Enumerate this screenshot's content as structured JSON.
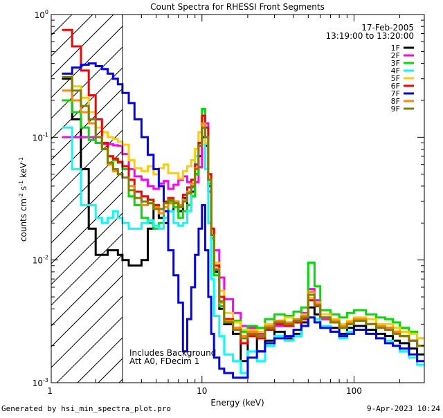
{
  "chart_data": {
    "type": "line",
    "title": "Count Spectra for RHESSI Front Segments",
    "xlabel": "Energy (keV)",
    "ylabel": "counts cm",
    "ylabel_sup1": "-2",
    "ylabel_mid": " s",
    "ylabel_sup2": "-1",
    "ylabel_unit": " keV",
    "ylabel_sup3": "-1",
    "x_scale": "log",
    "y_scale": "log",
    "xlim": [
      1.02,
      290
    ],
    "ylim": [
      0.001,
      1.0
    ],
    "x_ticks": [
      {
        "value": 1,
        "label": "1"
      },
      {
        "value": 10,
        "label": "10"
      },
      {
        "value": 100,
        "label": "100"
      }
    ],
    "y_ticks": [
      {
        "value": 0.001,
        "mant": "10",
        "exp": "-3"
      },
      {
        "value": 0.01,
        "mant": "10",
        "exp": "-2"
      },
      {
        "value": 0.1,
        "mant": "10",
        "exp": "-1"
      },
      {
        "value": 1.0,
        "mant": "10",
        "exp": "0"
      }
    ],
    "hatched_region": [
      1.02,
      3.0
    ],
    "legend_placement": "top-right",
    "date_label": "17-Feb-2005",
    "time_range_label": "13:19:00 to 13:20:00",
    "annotations": [
      "Includes Background",
      "Att A0, FDecim 1"
    ],
    "bin_edges": [
      1.2,
      1.4,
      1.6,
      1.8,
      2.0,
      2.2,
      2.4,
      2.6,
      2.8,
      3.0,
      3.3,
      3.6,
      4.0,
      4.4,
      4.8,
      5.2,
      5.6,
      6.0,
      6.5,
      7.0,
      7.5,
      8.0,
      8.5,
      9.0,
      9.5,
      10.0,
      10.5,
      11.0,
      11.5,
      12.0,
      13.0,
      14.0,
      16.0,
      18.0,
      20.0,
      23.0,
      26.0,
      30.0,
      35.0,
      40.0,
      45.0,
      50.0,
      55.0,
      60.0,
      70.0,
      80.0,
      90.0,
      100.0,
      120.0,
      140.0,
      160.0,
      180.0,
      200.0,
      230.0,
      260.0,
      290.0
    ],
    "series": [
      {
        "name": "1F",
        "color": "#000000",
        "values": [
          0.3,
          0.14,
          0.055,
          0.018,
          0.011,
          0.011,
          0.012,
          0.012,
          0.011,
          0.01,
          0.009,
          0.009,
          0.01,
          0.018,
          0.028,
          0.022,
          0.02,
          0.025,
          0.03,
          0.025,
          0.032,
          0.028,
          0.036,
          0.05,
          0.07,
          0.1,
          0.085,
          0.04,
          0.015,
          0.008,
          0.004,
          0.003,
          0.0025,
          0.0015,
          0.0025,
          0.0018,
          0.0022,
          0.0026,
          0.0023,
          0.0025,
          0.0031,
          0.0041,
          0.0036,
          0.0029,
          0.0028,
          0.0025,
          0.0028,
          0.0029,
          0.0027,
          0.0025,
          0.0024,
          0.0022,
          0.0021,
          0.0019,
          0.0017
        ]
      },
      {
        "name": "2F",
        "color": "#ff00ff",
        "values": [
          0.1,
          0.1,
          0.1,
          0.1,
          0.09,
          0.088,
          0.088,
          0.086,
          0.085,
          0.073,
          0.055,
          0.048,
          0.045,
          0.04,
          0.038,
          0.042,
          0.044,
          0.038,
          0.041,
          0.045,
          0.048,
          0.043,
          0.039,
          0.043,
          0.057,
          0.12,
          0.13,
          0.036,
          0.018,
          0.012,
          0.0072,
          0.0048,
          0.0037,
          0.0029,
          0.0028,
          0.0025,
          0.0028,
          0.0029,
          0.003,
          0.0031,
          0.0037,
          0.0058,
          0.0047,
          0.0033,
          0.0031,
          0.0028,
          0.003,
          0.0032,
          0.003,
          0.0029,
          0.0028,
          0.0026,
          0.0024,
          0.0022,
          0.002
        ]
      },
      {
        "name": "3F",
        "color": "#00dd00",
        "values": [
          0.2,
          0.16,
          0.12,
          0.095,
          0.09,
          0.08,
          0.07,
          0.065,
          0.062,
          0.055,
          0.033,
          0.028,
          0.022,
          0.02,
          0.018,
          0.02,
          0.025,
          0.03,
          0.027,
          0.022,
          0.025,
          0.028,
          0.033,
          0.05,
          0.09,
          0.17,
          0.12,
          0.042,
          0.015,
          0.0075,
          0.0042,
          0.0033,
          0.0032,
          0.0026,
          0.0029,
          0.0028,
          0.0033,
          0.0036,
          0.0035,
          0.0038,
          0.0041,
          0.0095,
          0.0061,
          0.0039,
          0.0036,
          0.0034,
          0.0037,
          0.0039,
          0.0036,
          0.0034,
          0.0033,
          0.0031,
          0.0028,
          0.0026,
          0.0023
        ]
      },
      {
        "name": "4F",
        "color": "#00ffff",
        "values": [
          0.12,
          0.055,
          0.028,
          0.028,
          0.022,
          0.02,
          0.022,
          0.025,
          0.022,
          0.02,
          0.018,
          0.018,
          0.02,
          0.021,
          0.019,
          0.018,
          0.022,
          0.025,
          0.02,
          0.019,
          0.02,
          0.025,
          0.04,
          0.07,
          0.11,
          0.12,
          0.055,
          0.02,
          0.007,
          0.0035,
          0.0024,
          0.0017,
          0.0015,
          0.0012,
          0.0018,
          0.0015,
          0.002,
          0.0024,
          0.0022,
          0.0024,
          0.0029,
          0.0034,
          0.0033,
          0.0029,
          0.0026,
          0.0023,
          0.0026,
          0.0027,
          0.0025,
          0.0023,
          0.0022,
          0.002,
          0.0018,
          0.0016,
          0.0014
        ]
      },
      {
        "name": "5F",
        "color": "#ffcc00",
        "values": [
          0.33,
          0.26,
          0.21,
          0.16,
          0.12,
          0.11,
          0.1,
          0.097,
          0.092,
          0.087,
          0.065,
          0.056,
          0.053,
          0.058,
          0.05,
          0.056,
          0.06,
          0.051,
          0.051,
          0.046,
          0.053,
          0.058,
          0.065,
          0.08,
          0.11,
          0.14,
          0.09,
          0.05,
          0.018,
          0.0095,
          0.0056,
          0.0037,
          0.0031,
          0.0027,
          0.0027,
          0.0026,
          0.003,
          0.0032,
          0.0034,
          0.0033,
          0.0036,
          0.0049,
          0.0045,
          0.0036,
          0.0033,
          0.003,
          0.0032,
          0.0034,
          0.0033,
          0.003,
          0.003,
          0.0028,
          0.0026,
          0.0025,
          0.0023
        ]
      },
      {
        "name": "6F",
        "color": "#ff0000",
        "values": [
          0.75,
          0.55,
          0.35,
          0.22,
          0.14,
          0.09,
          0.07,
          0.067,
          0.063,
          0.058,
          0.045,
          0.036,
          0.033,
          0.031,
          0.028,
          0.026,
          0.03,
          0.032,
          0.03,
          0.028,
          0.034,
          0.039,
          0.045,
          0.06,
          0.09,
          0.15,
          0.12,
          0.05,
          0.018,
          0.009,
          0.005,
          0.0033,
          0.0028,
          0.0021,
          0.0024,
          0.0023,
          0.0027,
          0.003,
          0.0029,
          0.0031,
          0.0033,
          0.0047,
          0.0042,
          0.0034,
          0.0032,
          0.0028,
          0.003,
          0.0032,
          0.003,
          0.0029,
          0.0028,
          0.0026,
          0.0024,
          0.0022,
          0.002
        ]
      },
      {
        "name": "7F",
        "color": "#0000ff",
        "values": [
          0.33,
          0.37,
          0.39,
          0.4,
          0.38,
          0.36,
          0.33,
          0.3,
          0.27,
          0.23,
          0.19,
          0.14,
          0.1,
          0.072,
          0.055,
          0.04,
          0.025,
          0.012,
          0.0075,
          0.0045,
          0.0018,
          0.0033,
          0.006,
          0.011,
          0.018,
          0.028,
          0.012,
          0.005,
          0.0025,
          0.0016,
          0.0013,
          0.0012,
          0.0011,
          0.0011,
          0.0016,
          0.0018,
          0.0021,
          0.0023,
          0.0024,
          0.0027,
          0.0029,
          0.0034,
          0.0031,
          0.0028,
          0.0026,
          0.0024,
          0.0025,
          0.0027,
          0.0025,
          0.0023,
          0.0021,
          0.002,
          0.0019,
          0.0017,
          0.0015
        ]
      },
      {
        "name": "8F",
        "color": "#ff8800",
        "values": [
          0.24,
          0.2,
          0.16,
          0.13,
          0.1,
          0.08,
          0.06,
          0.053,
          0.05,
          0.047,
          0.04,
          0.032,
          0.028,
          0.029,
          0.027,
          0.024,
          0.027,
          0.029,
          0.03,
          0.028,
          0.031,
          0.036,
          0.042,
          0.056,
          0.085,
          0.13,
          0.1,
          0.045,
          0.016,
          0.0085,
          0.0045,
          0.0032,
          0.0028,
          0.0024,
          0.0026,
          0.0024,
          0.0029,
          0.0032,
          0.0031,
          0.0033,
          0.0035,
          0.0055,
          0.0044,
          0.0034,
          0.0032,
          0.0029,
          0.0031,
          0.0033,
          0.003,
          0.0029,
          0.0028,
          0.0026,
          0.0024,
          0.0022,
          0.002
        ]
      },
      {
        "name": "9F",
        "color": "#808000",
        "values": [
          0.31,
          0.24,
          0.18,
          0.14,
          0.1,
          0.08,
          0.062,
          0.055,
          0.05,
          0.047,
          0.037,
          0.032,
          0.03,
          0.029,
          0.026,
          0.026,
          0.029,
          0.031,
          0.029,
          0.027,
          0.03,
          0.035,
          0.04,
          0.055,
          0.085,
          0.12,
          0.1,
          0.045,
          0.016,
          0.0083,
          0.0046,
          0.0031,
          0.0027,
          0.0023,
          0.0025,
          0.0024,
          0.0028,
          0.0031,
          0.003,
          0.0032,
          0.0034,
          0.0052,
          0.0043,
          0.0034,
          0.0031,
          0.0028,
          0.003,
          0.0032,
          0.003,
          0.0028,
          0.0027,
          0.0025,
          0.0024,
          0.0022,
          0.002
        ]
      }
    ]
  },
  "footer": {
    "generated_by": "Generated by hsi_min_spectra_plot.pro",
    "timestamp": "9-Apr-2023 10:24"
  }
}
